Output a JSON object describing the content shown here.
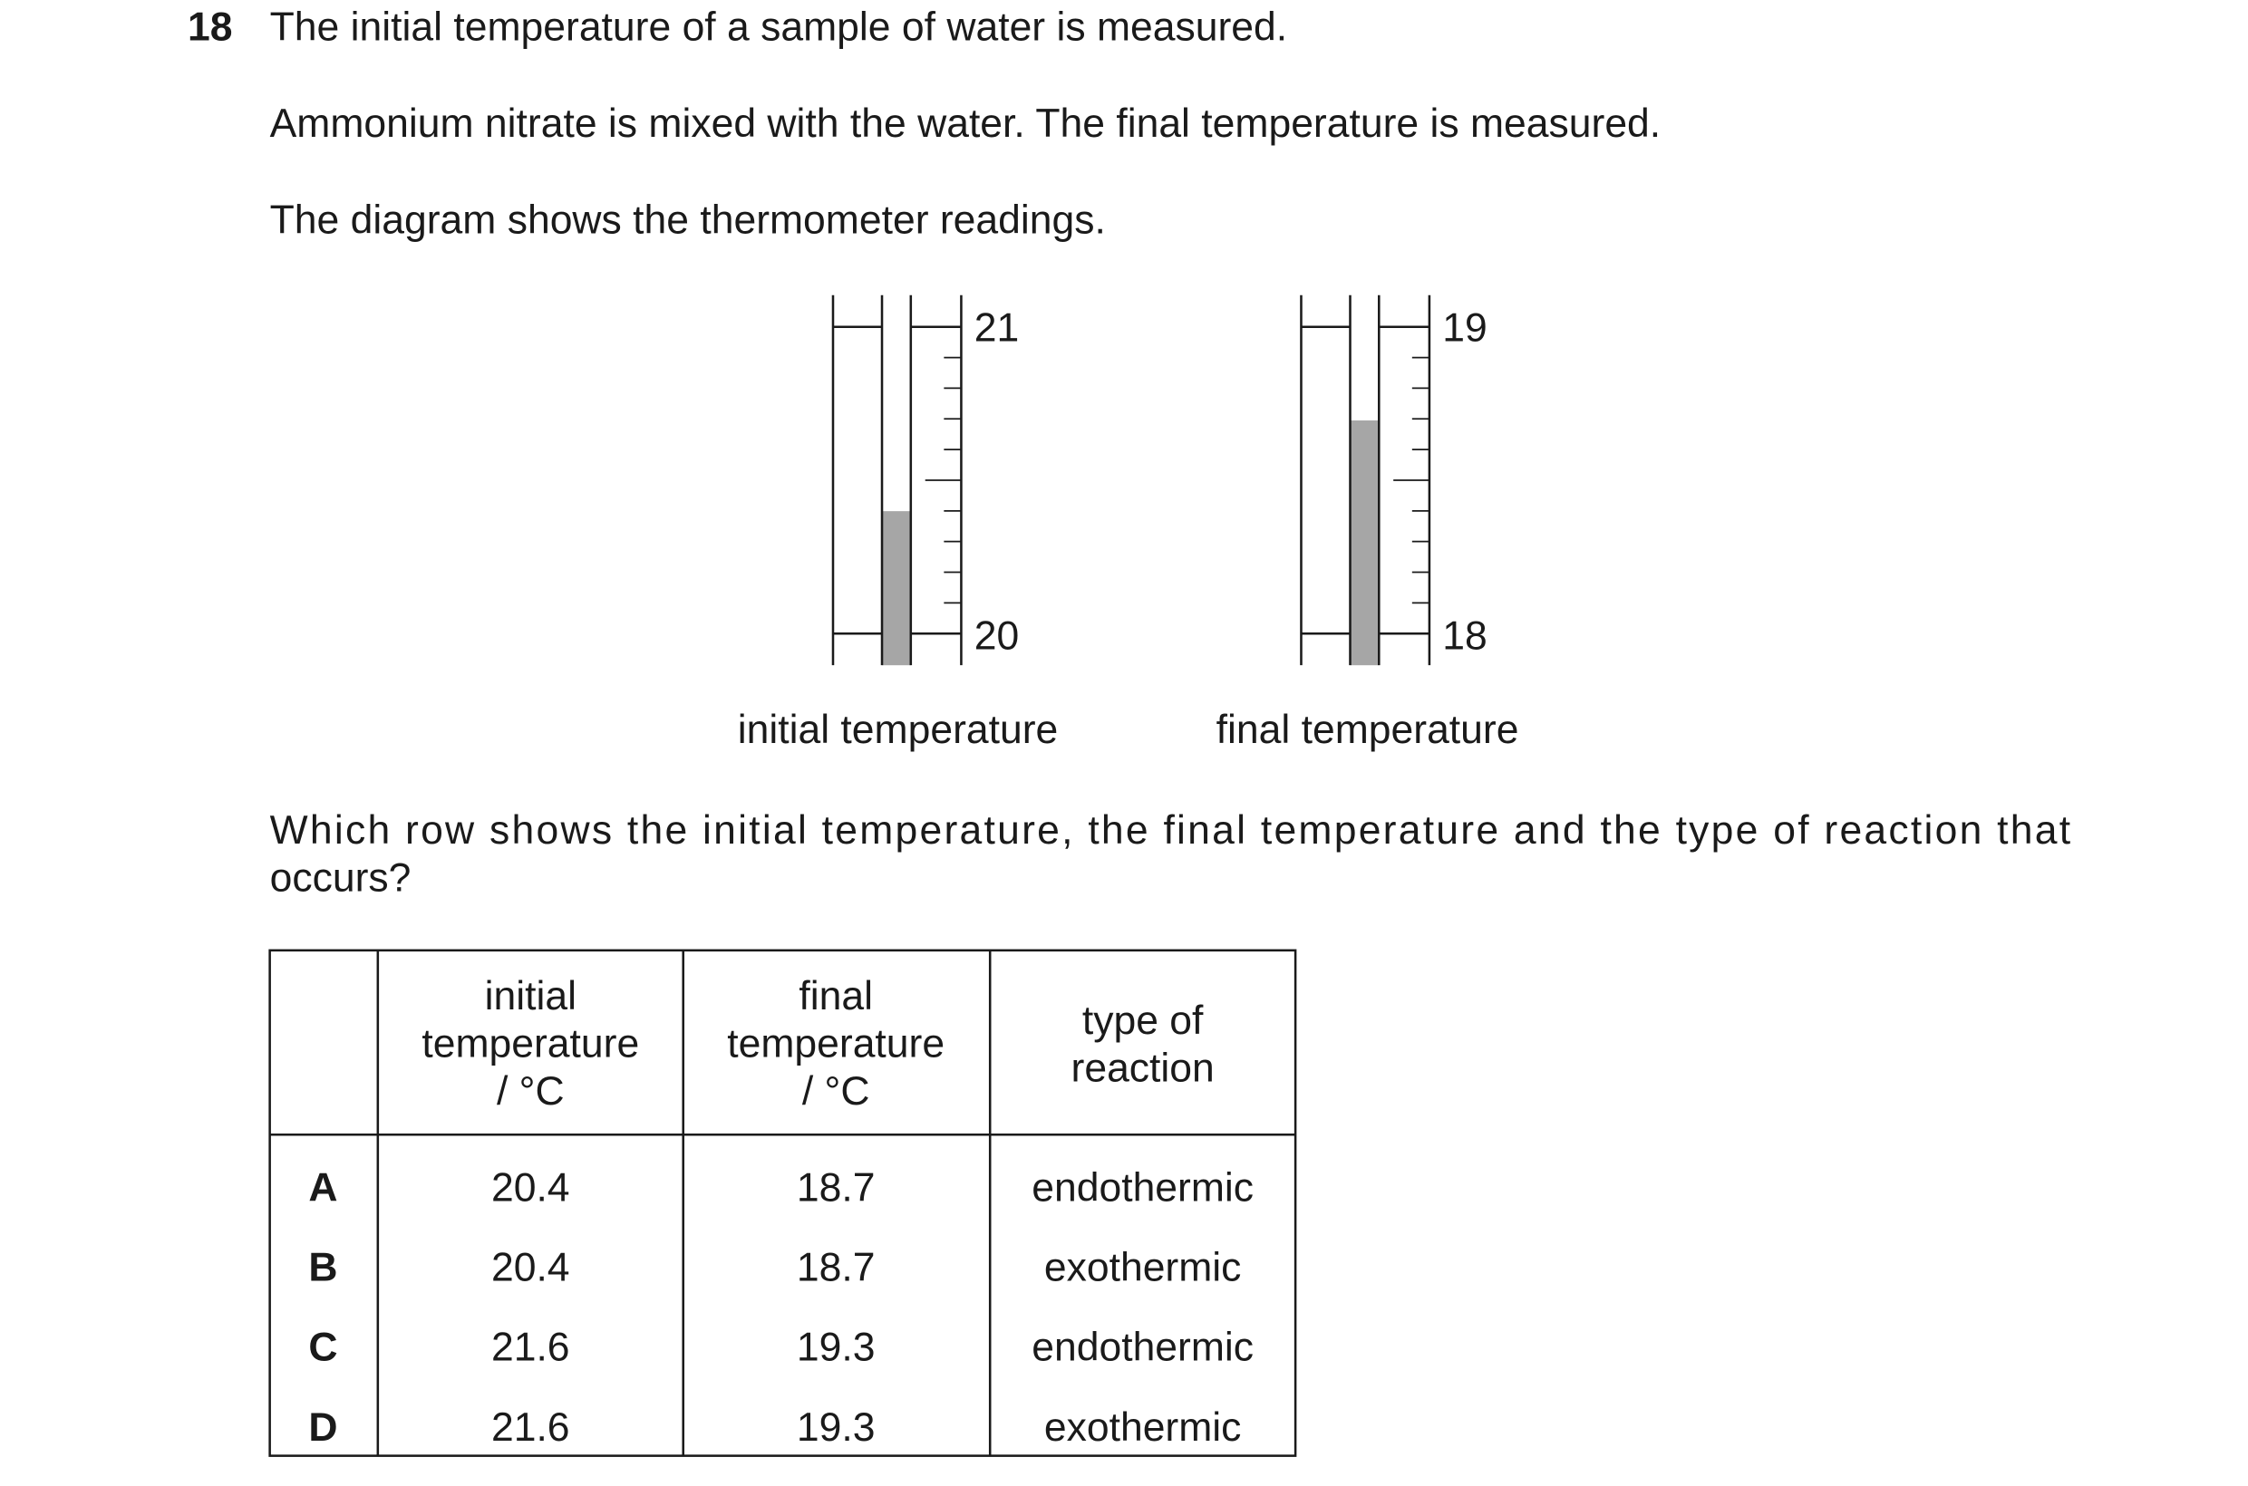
{
  "question": {
    "number": "18",
    "lines": [
      "The initial temperature of a sample of water is measured.",
      "Ammonium nitrate is mixed with the water. The final temperature is measured.",
      "The diagram shows the thermometer readings."
    ]
  },
  "diagram": {
    "thermometers": [
      {
        "top_label": "21",
        "bottom_label": "20",
        "caption": "initial temperature"
      },
      {
        "top_label": "19",
        "bottom_label": "18",
        "caption": "final temperature"
      }
    ]
  },
  "prompt_lines": [
    "Which row shows the initial temperature, the final temperature and the type of reaction that",
    "occurs?"
  ],
  "table": {
    "header": [
      [
        "initial",
        "temperature",
        "/ °C"
      ],
      [
        "final",
        "temperature",
        "/ °C"
      ],
      [
        "type of",
        "reaction"
      ]
    ],
    "rows": [
      [
        "A",
        20.4,
        18.7,
        "endothermic"
      ],
      [
        "B",
        20.4,
        18.7,
        "exothermic"
      ],
      [
        "C",
        21.6,
        19.3,
        "endothermic"
      ],
      [
        "D",
        21.6,
        19.3,
        "exothermic"
      ]
    ]
  }
}
